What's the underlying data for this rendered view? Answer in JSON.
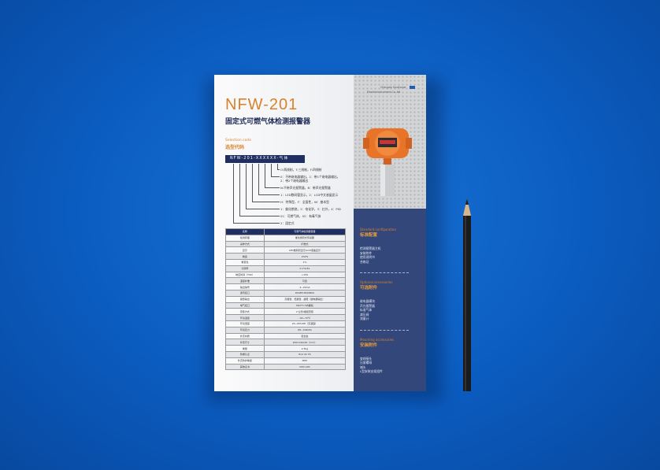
{
  "brochure": {
    "model": "NFW-201",
    "product_name": "固定式可燃气体检测报警器",
    "selection_code_en": "Selection code",
    "selection_code_cn": "选型代码",
    "code": "NFW-201-XXXXXX-气体",
    "options": [
      "O:两线制，T:三线制，F:四线制",
      "0：不带继电器输出，1：带1个继电器输出，",
      "2：带2个继电器输出",
      "N:不带声光报警器，B：带声光报警器",
      "1：LED数码管显示，2：LCD中文液晶显示",
      "H：特殊型，F：全面性，W：基本型",
      "1：催化燃烧，2：电化学，3：红外，4：PID",
      "01：可燃气体，02：有毒气体",
      "2：固定式"
    ],
    "table": {
      "header": [
        "名称",
        "可燃气体检测报警器"
      ],
      "rows": [
        [
          "检测原理",
          "催化燃烧式传感器"
        ],
        [
          "采样方式",
          "扩散式"
        ],
        [
          "显示",
          "LED数码管显示/LCD液晶显示"
        ],
        [
          "精度",
          "2%FS"
        ],
        [
          "重复性",
          "1%"
        ],
        [
          "分辨率",
          "0.1%LEL"
        ],
        [
          "响应时间（T90）",
          "<15S"
        ],
        [
          "温度补偿",
          "可选"
        ],
        [
          "输出信号",
          "4~20mA"
        ],
        [
          "通讯接口",
          "RS485 MODBUS"
        ],
        [
          "报警输出",
          "高报警、低报警、故障（继电器输出）"
        ],
        [
          "电气接口",
          "M20*1.5内螺纹"
        ],
        [
          "安装方式",
          "2″立管/壁挂安装"
        ],
        [
          "环境温度",
          "-40~70℃"
        ],
        [
          "环境湿度",
          "20~95%RH（无凝露）"
        ],
        [
          "环境压力",
          "86~106kPa"
        ],
        [
          "外壳材质",
          "铝合金"
        ],
        [
          "外形尺寸",
          "200x140x92（mm）"
        ],
        [
          "重量",
          "2.5kg"
        ],
        [
          "防爆认证",
          "Exd IIC T6"
        ],
        [
          "外壳防护等级",
          "IP65"
        ],
        [
          "其他证书",
          "CMC,CPA"
        ]
      ]
    },
    "company": [
      "Chengdu Southeast",
      "Electricinstrument Co.,ltd"
    ],
    "sections": [
      {
        "en": "Standard configuration",
        "cn": "标准配置",
        "items": [
          "检测报警器主机",
          "安装附件",
          "使用说明书",
          "合格证"
        ]
      },
      {
        "en": "Optional accessories",
        "cn": "可选附件",
        "items": [
          "继电器模块",
          "声光报警器",
          "标准气体",
          "减压阀",
          "流量计"
        ]
      },
      {
        "en": "Mounting accessories",
        "cn": "安装附件",
        "items": [
          "穿线接头",
          "压紧螺母",
          "堵头",
          "L型安装支架组件"
        ]
      }
    ]
  },
  "colors": {
    "background": "#0b5cc0",
    "navy": "#33477a",
    "accent": "#d9822b",
    "device": "#e8742a"
  }
}
